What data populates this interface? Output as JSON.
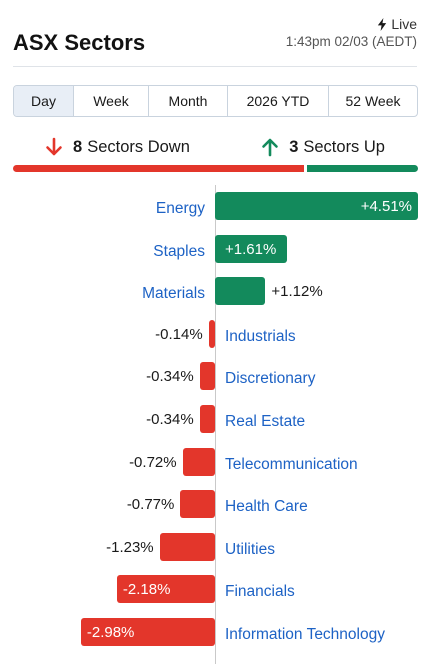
{
  "header": {
    "title": "ASX Sectors",
    "live_label": "Live",
    "timestamp": "1:43pm 02/03 (AEDT)"
  },
  "tabs": [
    {
      "label": "Day",
      "active": true
    },
    {
      "label": "Week",
      "active": false
    },
    {
      "label": "Month",
      "active": false
    },
    {
      "label": "2026 YTD",
      "active": false
    },
    {
      "label": "52 Week",
      "active": false
    }
  ],
  "summary": {
    "down_count": "8",
    "down_label": "Sectors Down",
    "up_count": "3",
    "up_label": "Sectors Up",
    "down_fraction": 0.727,
    "colors": {
      "down": "#e3362b",
      "up": "#138a5c"
    }
  },
  "chart_data": {
    "type": "bar",
    "categories": [
      "Energy",
      "Staples",
      "Materials",
      "Industrials",
      "Discretionary",
      "Real Estate",
      "Telecommunication",
      "Health Care",
      "Utilities",
      "Financials",
      "Information Technology"
    ],
    "values": [
      4.51,
      1.61,
      1.12,
      -0.14,
      -0.34,
      -0.34,
      -0.72,
      -0.77,
      -1.23,
      -2.18,
      -2.98
    ],
    "labels": [
      "+4.51%",
      "+1.61%",
      "+1.12%",
      "-0.14%",
      "-0.34%",
      "-0.34%",
      "-0.72%",
      "-0.77%",
      "-1.23%",
      "-2.18%",
      "-2.98%"
    ]
  }
}
